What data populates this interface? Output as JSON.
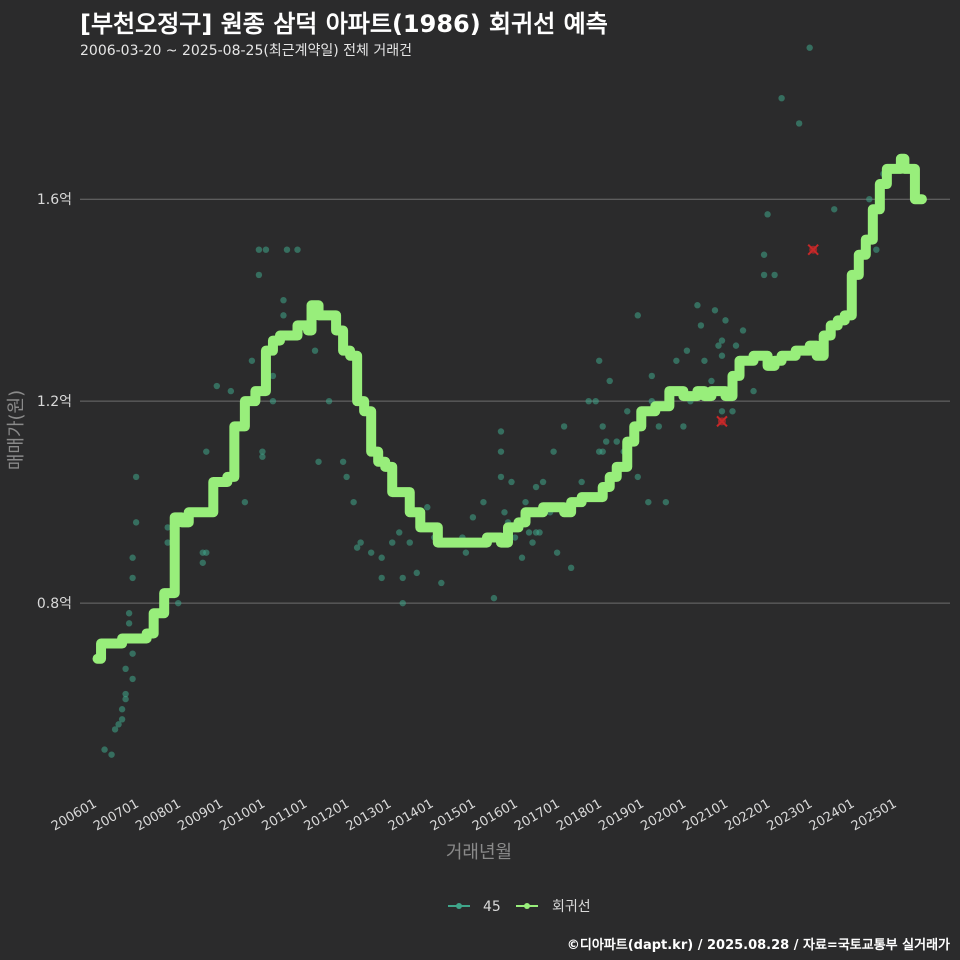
{
  "title": "[부천오정구] 원종 삼덕 아파트(1986) 회귀선 예측",
  "subtitle": "2006-03-20 ~ 2025-08-25(최근계약일) 전체 거래건",
  "caption": "©디아파트(dapt.kr) / 2025.08.28 / 자료=국토교통부 실거래가",
  "colors": {
    "background": "#2b2b2c",
    "grid": "#6e6e6e",
    "scatter": "#3fa58a",
    "regression": "#98ee7b",
    "outlier": "#c62828"
  },
  "chart_data": {
    "type": "scatter",
    "title": "[부천오정구] 원종 삼덕 아파트(1986) 회귀선 예측",
    "subtitle": "2006-03-20 ~ 2025-08-25(최근계약일) 전체 거래건",
    "xlabel": "거래년월",
    "ylabel": "매매가(원)",
    "x_ticks": [
      "200601",
      "200701",
      "200801",
      "200901",
      "201001",
      "201101",
      "201201",
      "201301",
      "201401",
      "201501",
      "201601",
      "201701",
      "201801",
      "201901",
      "202001",
      "202101",
      "202201",
      "202301",
      "202401",
      "202501"
    ],
    "y_ticks": [
      {
        "value": 0.8,
        "label": "0.8억"
      },
      {
        "value": 1.2,
        "label": "1.2억"
      },
      {
        "value": 1.6,
        "label": "1.6억"
      }
    ],
    "xlim": [
      "2005-08",
      "2026-04"
    ],
    "ylim": [
      0.43,
      1.84
    ],
    "grid": "horizontal",
    "legend_position": "bottom",
    "series": [
      {
        "name": "45",
        "type": "scatter",
        "points": [
          [
            "2006-03",
            0.51
          ],
          [
            "2006-05",
            0.5
          ],
          [
            "2006-06",
            0.55
          ],
          [
            "2006-07",
            0.56
          ],
          [
            "2006-08",
            0.57
          ],
          [
            "2006-08",
            0.59
          ],
          [
            "2006-09",
            0.61
          ],
          [
            "2006-09",
            0.62
          ],
          [
            "2006-09",
            0.67
          ],
          [
            "2006-10",
            0.76
          ],
          [
            "2006-10",
            0.78
          ],
          [
            "2006-11",
            0.65
          ],
          [
            "2006-11",
            0.7
          ],
          [
            "2006-11",
            0.85
          ],
          [
            "2006-11",
            0.89
          ],
          [
            "2006-12",
            0.96
          ],
          [
            "2006-12",
            1.05
          ],
          [
            "2007-09",
            0.92
          ],
          [
            "2007-09",
            0.95
          ],
          [
            "2007-12",
            0.8
          ],
          [
            "2008-04",
            0.98
          ],
          [
            "2008-07",
            0.88
          ],
          [
            "2008-07",
            0.9
          ],
          [
            "2008-08",
            0.9
          ],
          [
            "2008-08",
            1.1
          ],
          [
            "2008-11",
            1.23
          ],
          [
            "2009-03",
            1.22
          ],
          [
            "2009-07",
            1.0
          ],
          [
            "2009-09",
            1.28
          ],
          [
            "2009-11",
            1.5
          ],
          [
            "2009-11",
            1.45
          ],
          [
            "2009-12",
            1.1
          ],
          [
            "2009-12",
            1.09
          ],
          [
            "2010-01",
            1.5
          ],
          [
            "2010-02",
            1.3
          ],
          [
            "2010-03",
            1.2
          ],
          [
            "2010-03",
            1.25
          ],
          [
            "2010-06",
            1.37
          ],
          [
            "2010-06",
            1.4
          ],
          [
            "2010-07",
            1.5
          ],
          [
            "2010-10",
            1.5
          ],
          [
            "2010-11",
            1.35
          ],
          [
            "2011-01",
            1.34
          ],
          [
            "2011-03",
            1.3
          ],
          [
            "2011-04",
            1.08
          ],
          [
            "2011-07",
            1.2
          ],
          [
            "2011-11",
            1.08
          ],
          [
            "2011-12",
            1.05
          ],
          [
            "2012-02",
            1.0
          ],
          [
            "2012-03",
            0.91
          ],
          [
            "2012-04",
            0.92
          ],
          [
            "2012-07",
            0.9
          ],
          [
            "2012-10",
            0.89
          ],
          [
            "2012-10",
            0.85
          ],
          [
            "2013-01",
            0.92
          ],
          [
            "2013-03",
            0.94
          ],
          [
            "2013-04",
            0.8
          ],
          [
            "2013-04",
            0.85
          ],
          [
            "2013-06",
            0.92
          ],
          [
            "2013-08",
            0.86
          ],
          [
            "2013-11",
            0.99
          ],
          [
            "2014-01",
            0.93
          ],
          [
            "2014-03",
            0.84
          ],
          [
            "2014-09",
            0.93
          ],
          [
            "2014-10",
            0.9
          ],
          [
            "2014-12",
            0.97
          ],
          [
            "2015-03",
            1.0
          ],
          [
            "2015-06",
            0.81
          ],
          [
            "2015-08",
            1.14
          ],
          [
            "2015-08",
            1.1
          ],
          [
            "2015-08",
            1.05
          ],
          [
            "2015-09",
            0.98
          ],
          [
            "2015-10",
            0.96
          ],
          [
            "2015-11",
            1.04
          ],
          [
            "2015-12",
            0.93
          ],
          [
            "2016-02",
            0.89
          ],
          [
            "2016-03",
            1.0
          ],
          [
            "2016-04",
            0.94
          ],
          [
            "2016-05",
            0.92
          ],
          [
            "2016-06",
            1.03
          ],
          [
            "2016-06",
            0.94
          ],
          [
            "2016-07",
            0.94
          ],
          [
            "2016-08",
            1.04
          ],
          [
            "2016-10",
            0.98
          ],
          [
            "2016-11",
            1.1
          ],
          [
            "2016-12",
            0.9
          ],
          [
            "2017-02",
            1.15
          ],
          [
            "2017-04",
            0.87
          ],
          [
            "2017-07",
            1.04
          ],
          [
            "2017-09",
            1.2
          ],
          [
            "2017-11",
            1.2
          ],
          [
            "2017-12",
            1.28
          ],
          [
            "2017-12",
            1.1
          ],
          [
            "2018-01",
            1.15
          ],
          [
            "2018-01",
            1.1
          ],
          [
            "2018-02",
            1.12
          ],
          [
            "2018-03",
            1.24
          ],
          [
            "2018-05",
            1.05
          ],
          [
            "2018-05",
            1.12
          ],
          [
            "2018-07",
            1.1
          ],
          [
            "2018-08",
            1.1
          ],
          [
            "2018-08",
            1.18
          ],
          [
            "2018-11",
            1.05
          ],
          [
            "2018-11",
            1.37
          ],
          [
            "2019-02",
            1.0
          ],
          [
            "2019-03",
            1.25
          ],
          [
            "2019-03",
            1.2
          ],
          [
            "2019-05",
            1.15
          ],
          [
            "2019-07",
            1.0
          ],
          [
            "2019-10",
            1.28
          ],
          [
            "2019-12",
            1.15
          ],
          [
            "2020-01",
            1.3
          ],
          [
            "2020-02",
            1.2
          ],
          [
            "2020-04",
            1.39
          ],
          [
            "2020-05",
            1.35
          ],
          [
            "2020-06",
            1.28
          ],
          [
            "2020-08",
            1.24
          ],
          [
            "2020-09",
            1.38
          ],
          [
            "2020-10",
            1.31
          ],
          [
            "2020-11",
            1.18
          ],
          [
            "2020-11",
            1.29
          ],
          [
            "2020-11",
            1.32
          ],
          [
            "2020-12",
            1.36
          ],
          [
            "2021-02",
            1.18
          ],
          [
            "2021-03",
            1.31
          ],
          [
            "2021-05",
            1.34
          ],
          [
            "2021-08",
            1.22
          ],
          [
            "2021-11",
            1.45
          ],
          [
            "2021-11",
            1.49
          ],
          [
            "2021-12",
            1.57
          ],
          [
            "2022-02",
            1.45
          ],
          [
            "2022-04",
            1.8
          ],
          [
            "2022-09",
            1.75
          ],
          [
            "2022-12",
            1.9
          ],
          [
            "2023-07",
            1.58
          ],
          [
            "2024-05",
            1.6
          ],
          [
            "2024-07",
            1.5
          ],
          [
            "2024-09",
            1.65
          ]
        ]
      },
      {
        "name": "회귀선",
        "type": "line",
        "points": [
          [
            "2006-01",
            0.69
          ],
          [
            "2006-02",
            0.72
          ],
          [
            "2006-05",
            0.72
          ],
          [
            "2006-08",
            0.73
          ],
          [
            "2006-12",
            0.73
          ],
          [
            "2007-03",
            0.74
          ],
          [
            "2007-05",
            0.78
          ],
          [
            "2007-08",
            0.82
          ],
          [
            "2007-11",
            0.97
          ],
          [
            "2008-01",
            0.96
          ],
          [
            "2008-03",
            0.98
          ],
          [
            "2008-07",
            0.98
          ],
          [
            "2008-10",
            1.04
          ],
          [
            "2009-02",
            1.05
          ],
          [
            "2009-04",
            1.15
          ],
          [
            "2009-07",
            1.2
          ],
          [
            "2009-10",
            1.22
          ],
          [
            "2010-01",
            1.3
          ],
          [
            "2010-03",
            1.32
          ],
          [
            "2010-05",
            1.33
          ],
          [
            "2010-08",
            1.33
          ],
          [
            "2010-10",
            1.35
          ],
          [
            "2011-01",
            1.34
          ],
          [
            "2011-02",
            1.39
          ],
          [
            "2011-04",
            1.37
          ],
          [
            "2011-07",
            1.37
          ],
          [
            "2011-09",
            1.34
          ],
          [
            "2011-11",
            1.3
          ],
          [
            "2012-01",
            1.29
          ],
          [
            "2012-03",
            1.2
          ],
          [
            "2012-05",
            1.18
          ],
          [
            "2012-07",
            1.1
          ],
          [
            "2012-09",
            1.08
          ],
          [
            "2012-11",
            1.07
          ],
          [
            "2013-01",
            1.02
          ],
          [
            "2013-04",
            1.02
          ],
          [
            "2013-06",
            0.98
          ],
          [
            "2013-09",
            0.95
          ],
          [
            "2013-12",
            0.95
          ],
          [
            "2014-02",
            0.92
          ],
          [
            "2014-05",
            0.92
          ],
          [
            "2014-08",
            0.92
          ],
          [
            "2014-11",
            0.92
          ],
          [
            "2015-02",
            0.92
          ],
          [
            "2015-04",
            0.93
          ],
          [
            "2015-06",
            0.93
          ],
          [
            "2015-08",
            0.92
          ],
          [
            "2015-10",
            0.95
          ],
          [
            "2016-01",
            0.96
          ],
          [
            "2016-03",
            0.98
          ],
          [
            "2016-05",
            0.98
          ],
          [
            "2016-08",
            0.99
          ],
          [
            "2016-11",
            0.99
          ],
          [
            "2017-02",
            0.98
          ],
          [
            "2017-04",
            1.0
          ],
          [
            "2017-07",
            1.01
          ],
          [
            "2017-10",
            1.01
          ],
          [
            "2018-01",
            1.03
          ],
          [
            "2018-03",
            1.05
          ],
          [
            "2018-05",
            1.07
          ],
          [
            "2018-08",
            1.12
          ],
          [
            "2018-10",
            1.15
          ],
          [
            "2018-12",
            1.18
          ],
          [
            "2019-02",
            1.18
          ],
          [
            "2019-04",
            1.19
          ],
          [
            "2019-06",
            1.19
          ],
          [
            "2019-08",
            1.22
          ],
          [
            "2019-10",
            1.22
          ],
          [
            "2019-12",
            1.21
          ],
          [
            "2020-02",
            1.21
          ],
          [
            "2020-04",
            1.22
          ],
          [
            "2020-06",
            1.21
          ],
          [
            "2020-08",
            1.22
          ],
          [
            "2020-10",
            1.22
          ],
          [
            "2020-12",
            1.21
          ],
          [
            "2021-02",
            1.25
          ],
          [
            "2021-04",
            1.28
          ],
          [
            "2021-06",
            1.28
          ],
          [
            "2021-08",
            1.29
          ],
          [
            "2021-10",
            1.29
          ],
          [
            "2021-12",
            1.27
          ],
          [
            "2022-02",
            1.28
          ],
          [
            "2022-04",
            1.29
          ],
          [
            "2022-06",
            1.29
          ],
          [
            "2022-08",
            1.3
          ],
          [
            "2022-10",
            1.3
          ],
          [
            "2022-12",
            1.31
          ],
          [
            "2023-02",
            1.29
          ],
          [
            "2023-04",
            1.33
          ],
          [
            "2023-06",
            1.35
          ],
          [
            "2023-08",
            1.36
          ],
          [
            "2023-10",
            1.37
          ],
          [
            "2023-12",
            1.45
          ],
          [
            "2024-02",
            1.49
          ],
          [
            "2024-04",
            1.52
          ],
          [
            "2024-06",
            1.58
          ],
          [
            "2024-08",
            1.63
          ],
          [
            "2024-10",
            1.66
          ],
          [
            "2024-12",
            1.66
          ],
          [
            "2025-02",
            1.68
          ],
          [
            "2025-03",
            1.66
          ],
          [
            "2025-05",
            1.66
          ],
          [
            "2025-06",
            1.6
          ],
          [
            "2025-08",
            1.6
          ]
        ]
      },
      {
        "name": "",
        "type": "outlier",
        "points": [
          [
            "2020-11",
            1.16
          ],
          [
            "2023-01",
            1.5
          ]
        ]
      }
    ]
  }
}
